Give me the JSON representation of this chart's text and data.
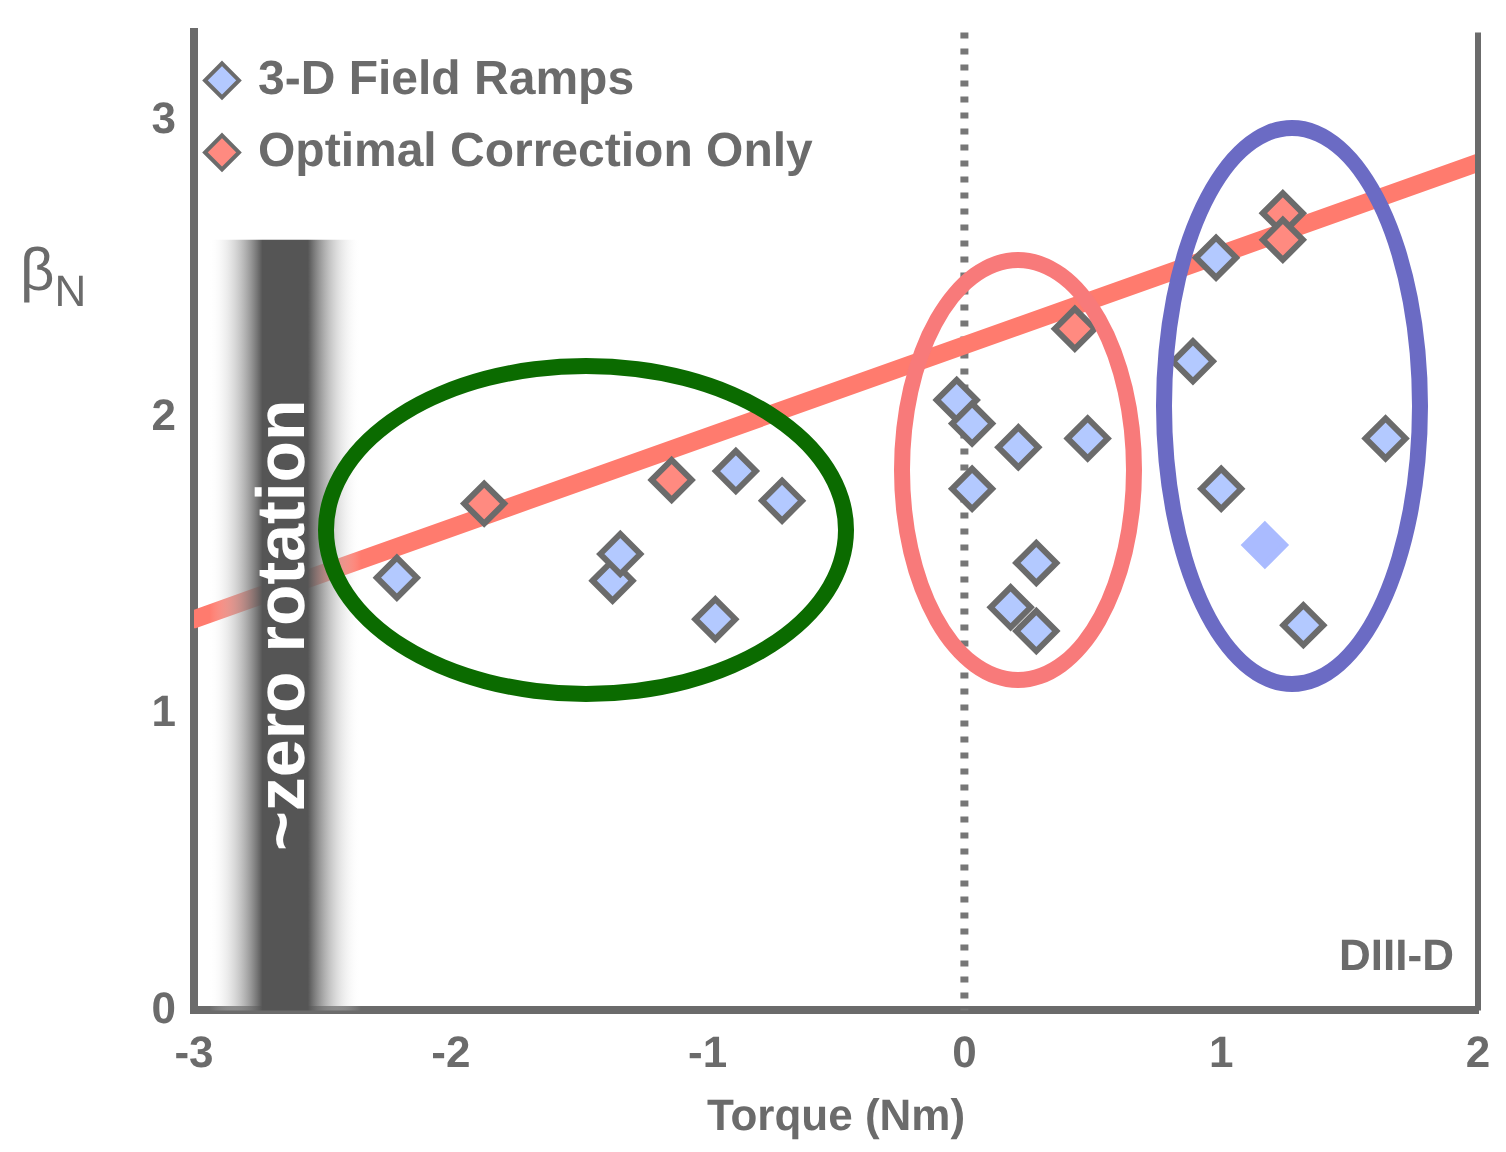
{
  "chart_data": {
    "type": "scatter",
    "xlabel": "Torque (Nm)",
    "ylabel": "β$_{N}$",
    "xlim": [
      -3,
      2
    ],
    "xticks": [
      -3,
      -2,
      -1,
      0,
      1,
      2
    ],
    "ylim": [
      0,
      3.3
    ],
    "yticks": [
      0,
      1,
      2,
      3
    ],
    "grid": false,
    "legend": "top left",
    "marker": "diamond",
    "series": [
      {
        "name": "3-D Field Ramps",
        "color": "#b3c9ff",
        "x": [
          -2.21,
          -1.37,
          -1.34,
          -0.97,
          -0.89,
          -0.71,
          -0.03,
          0.03,
          0.03,
          0.21,
          0.28,
          0.18,
          0.28,
          0.48,
          0.98,
          0.89,
          1.0,
          1.32,
          1.64
        ],
        "values": [
          1.46,
          1.45,
          1.54,
          1.32,
          1.82,
          1.72,
          2.06,
          1.98,
          1.76,
          1.9,
          1.51,
          1.36,
          1.28,
          1.93,
          2.54,
          2.19,
          1.76,
          1.3,
          1.93
        ]
      },
      {
        "color": "#aabbff",
        "x": [
          1.17
        ],
        "values": [
          1.57
        ]
      },
      {
        "name": "Optimal Correction Only",
        "color": "#ff8a80",
        "x": [
          -1.87,
          -1.14,
          0.43,
          1.24,
          1.24
        ],
        "values": [
          1.71,
          1.79,
          2.3,
          2.69,
          2.6
        ]
      },
      {
        "type": "line",
        "color": "#ff7b6e",
        "x": [
          -3,
          2
        ],
        "values": [
          1.32,
          2.86
        ],
        "marker": "none"
      }
    ],
    "ref_lines": [
      {
        "axis": "x",
        "value": 0,
        "line_style": "dotted",
        "color": "#777777"
      }
    ],
    "bands": [
      {
        "axis": "x",
        "from": -2.94,
        "to": -2.35,
        "label": "~zero rotation",
        "color": "#555555"
      }
    ],
    "annotations": [
      "DIII-D"
    ]
  }
}
